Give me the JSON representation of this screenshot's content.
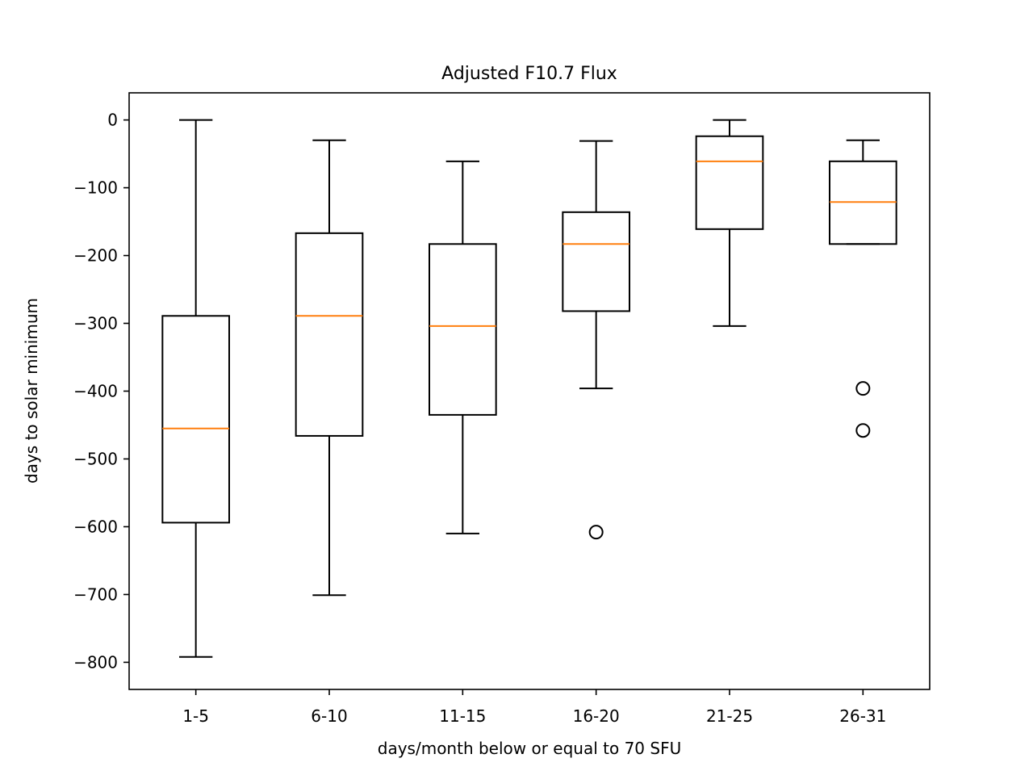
{
  "chart_data": {
    "type": "box",
    "title": "Adjusted F10.7 Flux",
    "xlabel": "days/month below or equal to 70 SFU",
    "ylabel": "days to solar minimum",
    "ylim": [
      -840,
      40
    ],
    "yticks": [
      0,
      -100,
      -200,
      -300,
      -400,
      -500,
      -600,
      -700,
      -800
    ],
    "ytick_labels": [
      "0",
      "−100",
      "−200",
      "−300",
      "−400",
      "−500",
      "−600",
      "−700",
      "−800"
    ],
    "grid": false,
    "categories": [
      "1-5",
      "6-10",
      "11-15",
      "16-20",
      "21-25",
      "26-31"
    ],
    "boxes": [
      {
        "category": "1-5",
        "whisker_low": -792,
        "q1": -594,
        "median": -455,
        "q3": -289,
        "whisker_high": 0,
        "outliers": []
      },
      {
        "category": "6-10",
        "whisker_low": -701,
        "q1": -466,
        "median": -289,
        "q3": -167,
        "whisker_high": -30,
        "outliers": []
      },
      {
        "category": "11-15",
        "whisker_low": -610,
        "q1": -435,
        "median": -304,
        "q3": -183,
        "whisker_high": -61,
        "outliers": []
      },
      {
        "category": "16-20",
        "whisker_low": -396,
        "q1": -282,
        "median": -183,
        "q3": -136,
        "whisker_high": -31,
        "outliers": [
          -608
        ]
      },
      {
        "category": "21-25",
        "whisker_low": -304,
        "q1": -161,
        "median": -61,
        "q3": -24,
        "whisker_high": 0,
        "outliers": []
      },
      {
        "category": "26-31",
        "whisker_low": -183,
        "q1": -183,
        "median": -121,
        "q3": -61,
        "whisker_high": -30,
        "outliers": [
          -396,
          -458
        ]
      }
    ],
    "colors": {
      "box": "#000000",
      "median": "#ff7f0e",
      "outlier": "#000000"
    }
  }
}
